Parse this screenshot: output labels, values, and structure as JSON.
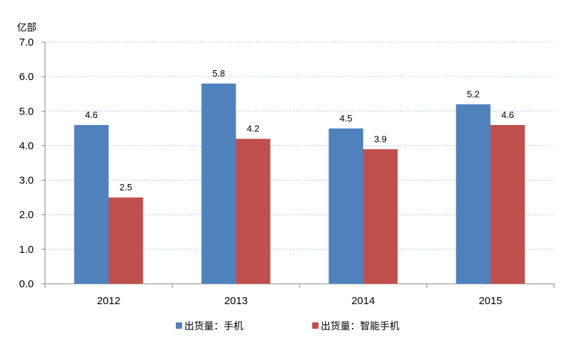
{
  "chart_data": {
    "type": "bar",
    "categories": [
      "2012",
      "2013",
      "2014",
      "2015"
    ],
    "series": [
      {
        "name": "出货量：手机",
        "values": [
          4.6,
          5.8,
          4.5,
          5.2
        ],
        "color": "#4F81BD"
      },
      {
        "name": "出货量：智能手机",
        "values": [
          2.5,
          4.2,
          3.9,
          4.6
        ],
        "color": "#C0504D"
      }
    ],
    "ylabel": "亿部",
    "ylim": [
      0,
      7
    ],
    "yticks": [
      "0.0",
      "1.0",
      "2.0",
      "3.0",
      "4.0",
      "5.0",
      "6.0",
      "7.0"
    ],
    "grid": true,
    "legend_position": "bottom",
    "data_labels": true
  }
}
